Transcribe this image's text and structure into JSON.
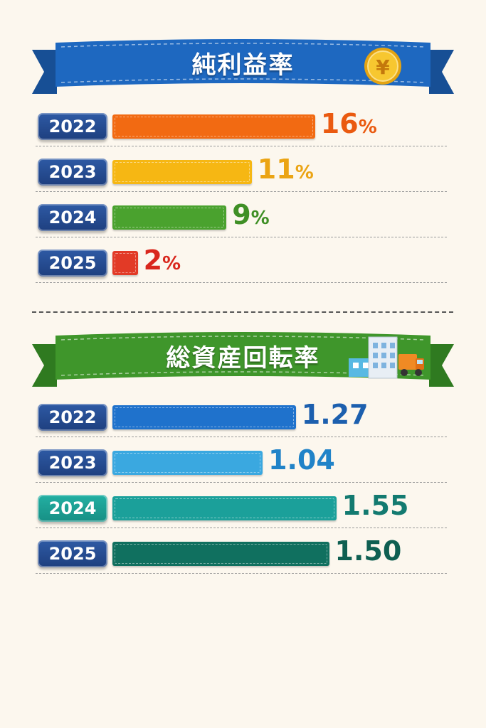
{
  "chart_data": [
    {
      "type": "bar",
      "title": "純利益率",
      "categories": [
        "2022",
        "2023",
        "2024",
        "2025"
      ],
      "values": [
        16,
        11,
        9,
        2
      ],
      "value_labels": [
        "16",
        "11",
        "9",
        "2"
      ],
      "unit": "%",
      "colors": [
        "#f26a12",
        "#f6b713",
        "#4aa22e",
        "#e23a26"
      ],
      "label_colors": [
        "#ea5a10",
        "#eba414",
        "#3f8f25",
        "#d9271d"
      ],
      "ribbon_color": "#1e68c0",
      "badge_colors": [
        "#1e3f7f",
        "#1e3f7f",
        "#1e3f7f",
        "#1e3f7f"
      ],
      "grid": false,
      "legend": "none",
      "icon": "yen-coin-icon"
    },
    {
      "type": "bar",
      "title": "総資産回転率",
      "categories": [
        "2022",
        "2023",
        "2024",
        "2025"
      ],
      "values": [
        1.27,
        1.04,
        1.55,
        1.5
      ],
      "value_labels": [
        "1.27",
        "1.04",
        "1.55",
        "1.50"
      ],
      "unit": "",
      "colors": [
        "#1f72cc",
        "#3aa8e0",
        "#1ba09a",
        "#10705f"
      ],
      "label_colors": [
        "#1c5fae",
        "#2183c8",
        "#137a70",
        "#0f5f52"
      ],
      "ribbon_color": "#3f962b",
      "badge_colors": [
        "#1e3f7f",
        "#1e3f7f",
        "#178f84",
        "#1e3f7f"
      ],
      "grid": false,
      "legend": "none",
      "icon": "buildings-truck-icon"
    }
  ]
}
